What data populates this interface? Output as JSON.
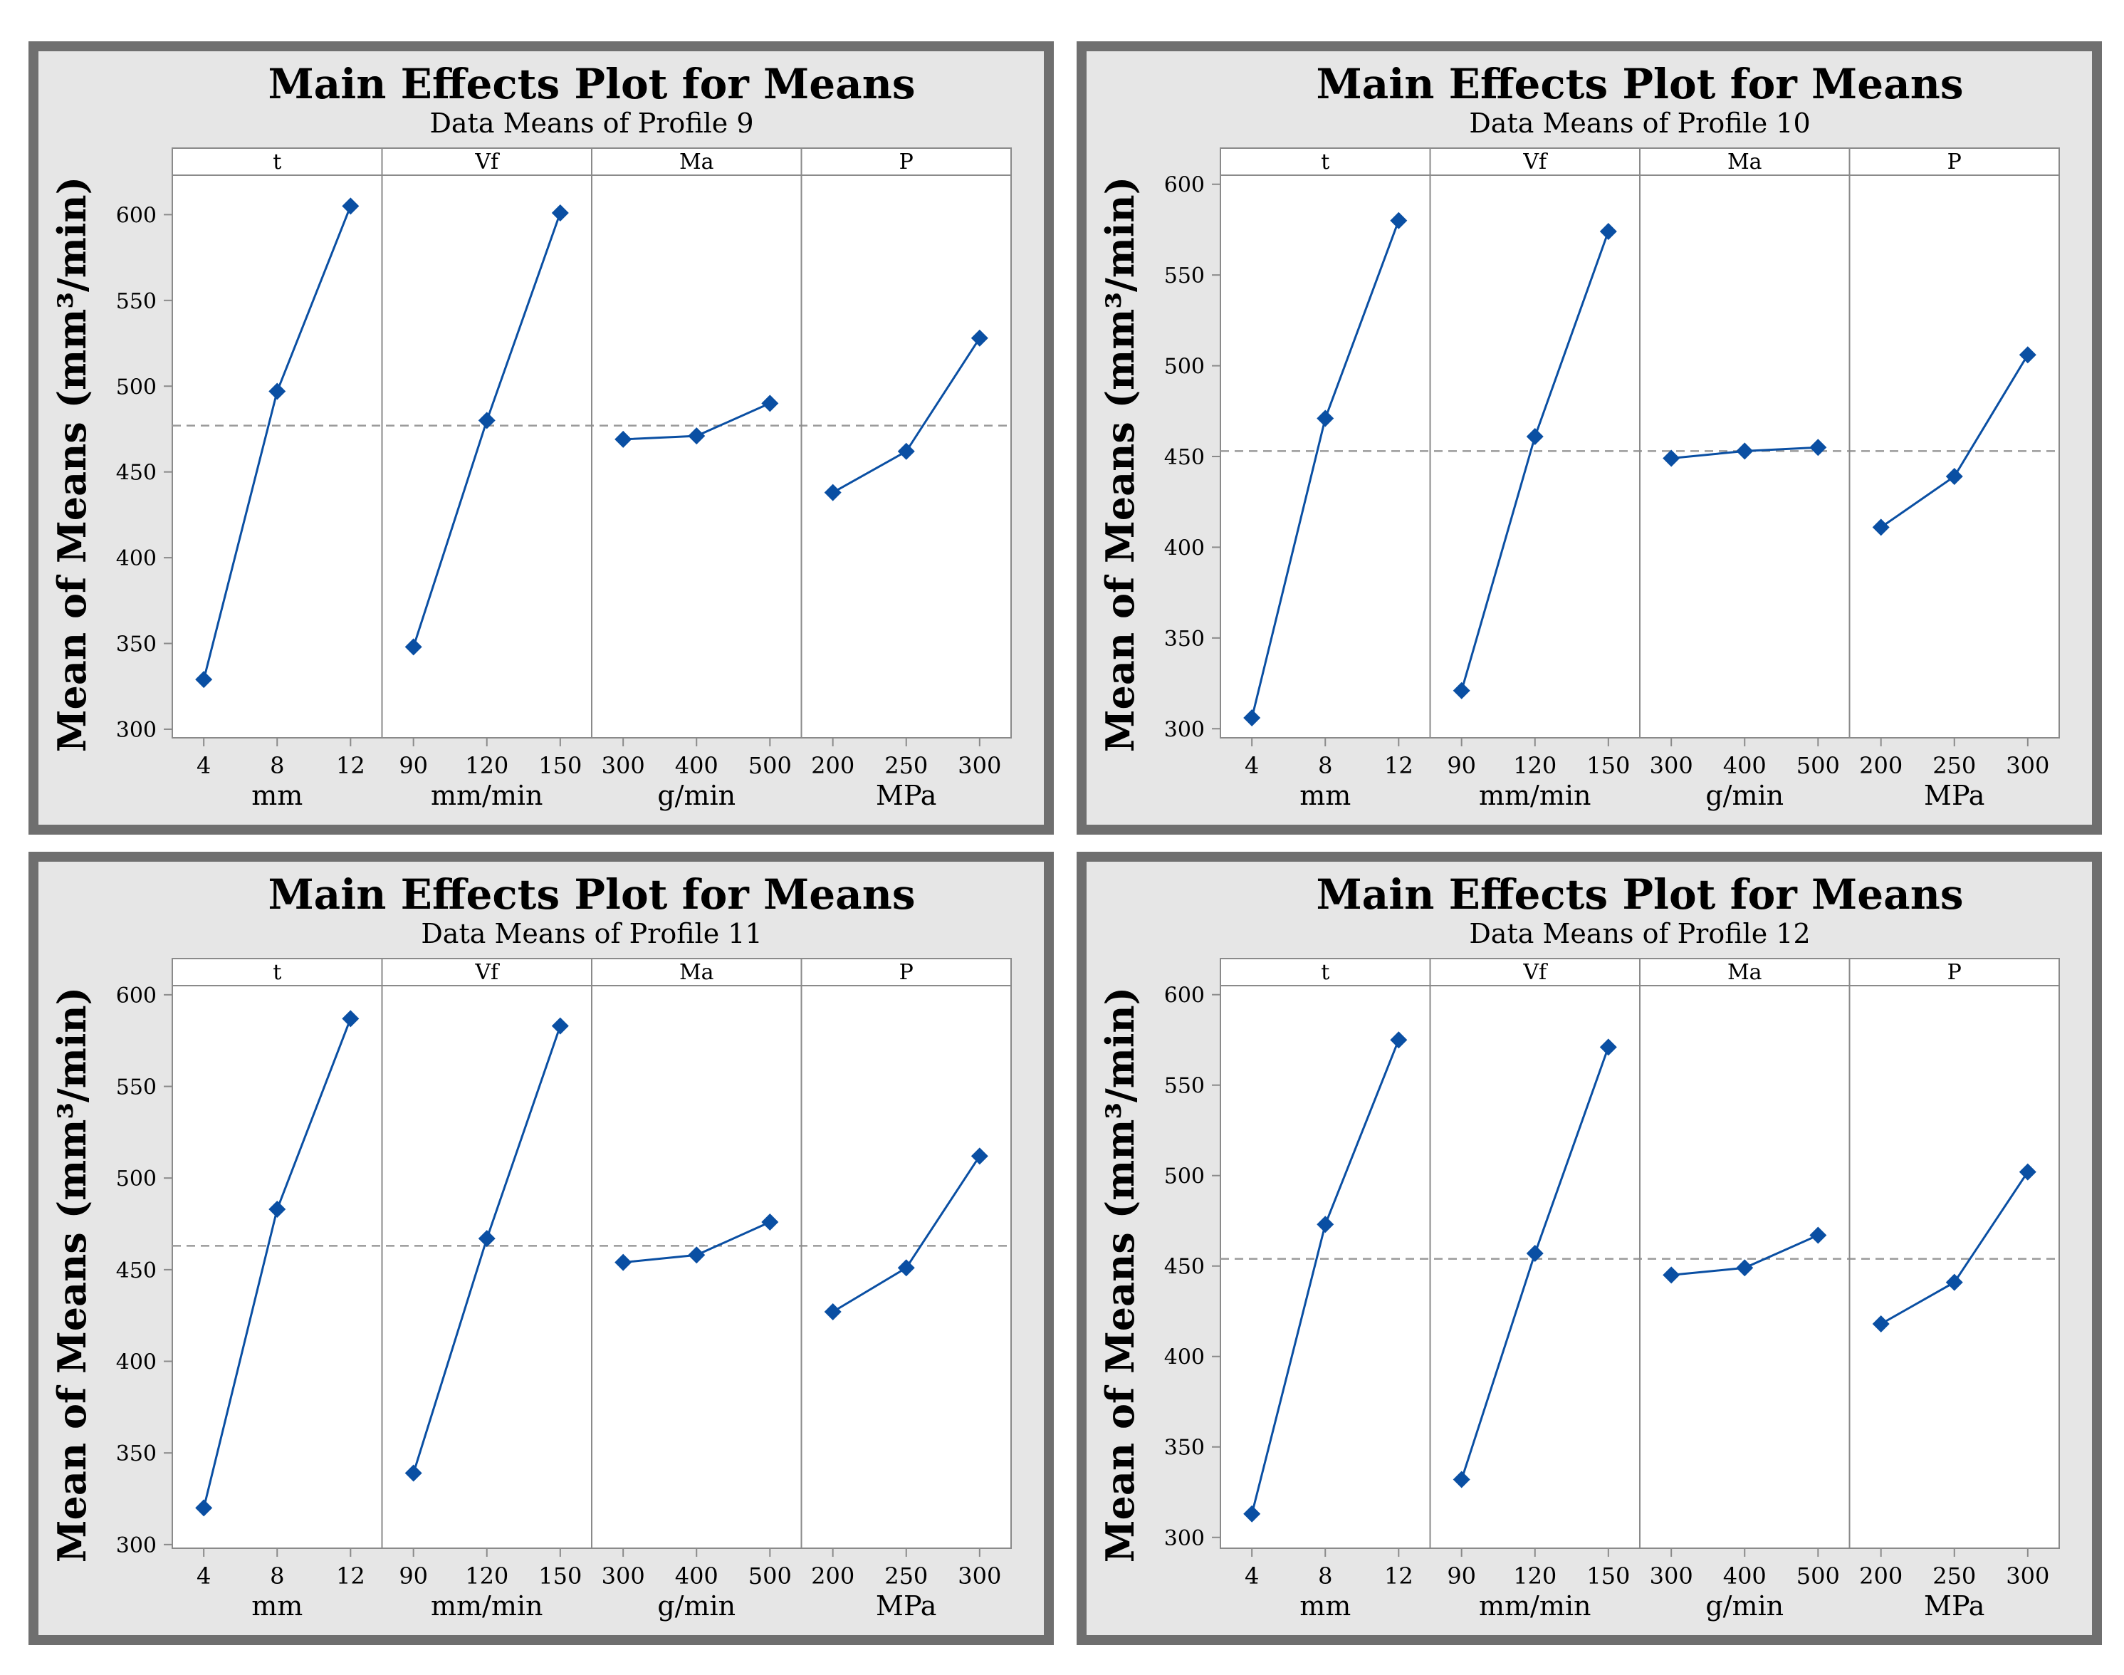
{
  "colors": {
    "frame": "#6f6f6f",
    "panel_bg": "#e6e6e6",
    "plot_bg": "#ffffff",
    "series": "#0a4fa3",
    "reference_line": "#9a9a9a",
    "axis": "#8a8a8a",
    "text": "#000000"
  },
  "chart_data": [
    {
      "type": "line",
      "title": "Main Effects Plot for Means",
      "subtitle": "Data Means of Profile 9",
      "ylabel": "Mean of Means (mm³/min)",
      "ylim": [
        295,
        623
      ],
      "yticks": [
        300,
        350,
        400,
        450,
        500,
        550,
        600
      ],
      "reference_mean": 477,
      "panels": [
        {
          "factor": "t",
          "unit": "mm",
          "x": [
            "4",
            "8",
            "12"
          ],
          "values": [
            329,
            497,
            605
          ]
        },
        {
          "factor": "Vf",
          "unit": "mm/min",
          "x": [
            "90",
            "120",
            "150"
          ],
          "values": [
            348,
            480,
            601
          ]
        },
        {
          "factor": "Ma",
          "unit": "g/min",
          "x": [
            "300",
            "400",
            "500"
          ],
          "values": [
            469,
            471,
            490
          ]
        },
        {
          "factor": "P",
          "unit": "MPa",
          "x": [
            "200",
            "250",
            "300"
          ],
          "values": [
            438,
            462,
            528
          ]
        }
      ]
    },
    {
      "type": "line",
      "title": "Main Effects Plot for Means",
      "subtitle": "Data Means of Profile 10",
      "ylabel": "Mean of Means (mm³/min)",
      "ylim": [
        295,
        605
      ],
      "yticks": [
        300,
        350,
        400,
        450,
        500,
        550,
        600
      ],
      "reference_mean": 453,
      "panels": [
        {
          "factor": "t",
          "unit": "mm",
          "x": [
            "4",
            "8",
            "12"
          ],
          "values": [
            306,
            471,
            580
          ]
        },
        {
          "factor": "Vf",
          "unit": "mm/min",
          "x": [
            "90",
            "120",
            "150"
          ],
          "values": [
            321,
            461,
            574
          ]
        },
        {
          "factor": "Ma",
          "unit": "g/min",
          "x": [
            "300",
            "400",
            "500"
          ],
          "values": [
            449,
            453,
            455
          ]
        },
        {
          "factor": "P",
          "unit": "MPa",
          "x": [
            "200",
            "250",
            "300"
          ],
          "values": [
            411,
            439,
            506
          ]
        }
      ]
    },
    {
      "type": "line",
      "title": "Main Effects Plot for Means",
      "subtitle": "Data Means of Profile 11",
      "ylabel": "Mean of Means (mm³/min)",
      "ylim": [
        298,
        605
      ],
      "yticks": [
        300,
        350,
        400,
        450,
        500,
        550,
        600
      ],
      "reference_mean": 463,
      "panels": [
        {
          "factor": "t",
          "unit": "mm",
          "x": [
            "4",
            "8",
            "12"
          ],
          "values": [
            320,
            483,
            587
          ]
        },
        {
          "factor": "Vf",
          "unit": "mm/min",
          "x": [
            "90",
            "120",
            "150"
          ],
          "values": [
            339,
            467,
            583
          ]
        },
        {
          "factor": "Ma",
          "unit": "g/min",
          "x": [
            "300",
            "400",
            "500"
          ],
          "values": [
            454,
            458,
            476
          ]
        },
        {
          "factor": "P",
          "unit": "MPa",
          "x": [
            "200",
            "250",
            "300"
          ],
          "values": [
            427,
            451,
            512
          ]
        }
      ]
    },
    {
      "type": "line",
      "title": "Main Effects Plot for Means",
      "subtitle": "Data Means of Profile 12",
      "ylabel": "Mean of Means (mm³/min)",
      "ylim": [
        294,
        605
      ],
      "yticks": [
        300,
        350,
        400,
        450,
        500,
        550,
        600
      ],
      "reference_mean": 454,
      "panels": [
        {
          "factor": "t",
          "unit": "mm",
          "x": [
            "4",
            "8",
            "12"
          ],
          "values": [
            313,
            473,
            575
          ]
        },
        {
          "factor": "Vf",
          "unit": "mm/min",
          "x": [
            "90",
            "120",
            "150"
          ],
          "values": [
            332,
            457,
            571
          ]
        },
        {
          "factor": "Ma",
          "unit": "g/min",
          "x": [
            "300",
            "400",
            "500"
          ],
          "values": [
            445,
            449,
            467
          ]
        },
        {
          "factor": "P",
          "unit": "MPa",
          "x": [
            "200",
            "250",
            "300"
          ],
          "values": [
            418,
            441,
            502
          ]
        }
      ]
    }
  ]
}
